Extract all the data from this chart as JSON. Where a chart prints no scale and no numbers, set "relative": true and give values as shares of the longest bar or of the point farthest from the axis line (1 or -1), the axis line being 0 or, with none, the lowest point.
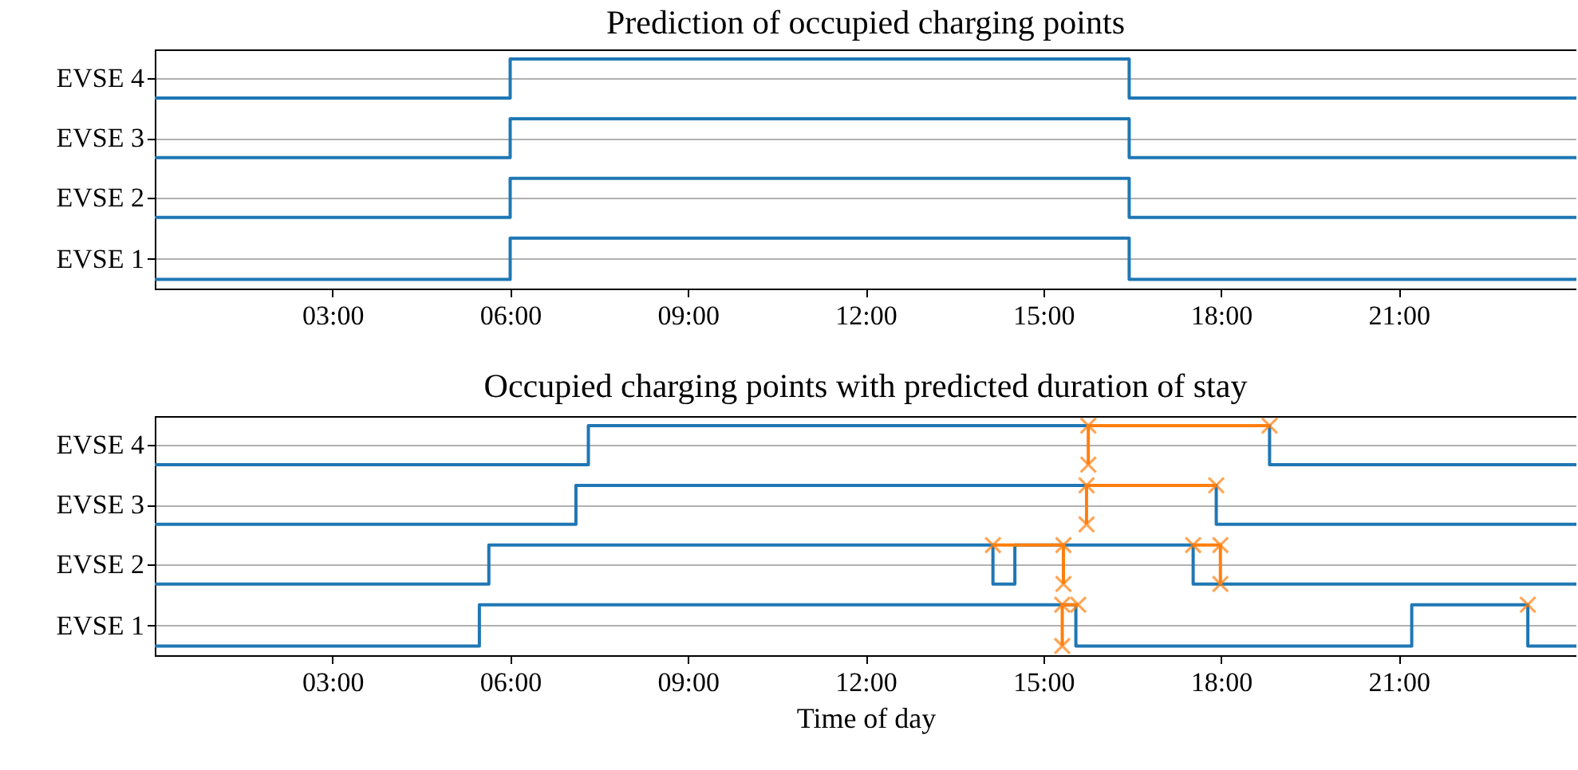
{
  "chart_data": [
    {
      "type": "step",
      "title": "Prediction of occupied charging points",
      "relative": true,
      "xlim": [
        0,
        24
      ],
      "xticks": [
        {
          "value": 3,
          "label": "03:00"
        },
        {
          "value": 6,
          "label": "06:00"
        },
        {
          "value": 9,
          "label": "09:00"
        },
        {
          "value": 12,
          "label": "12:00"
        },
        {
          "value": 15,
          "label": "15:00"
        },
        {
          "value": 18,
          "label": "18:00"
        },
        {
          "value": 21,
          "label": "21:00"
        }
      ],
      "y_categories": [
        "EVSE 4",
        "EVSE 3",
        "EVSE 2",
        "EVSE 1"
      ],
      "grid": "y",
      "series": [
        {
          "color": "#1f77b4",
          "x": [
            0,
            6,
            16.45,
            24
          ],
          "values": [
            0.04,
            0.22,
            0.04,
            0.04
          ]
        },
        {
          "color": "#1f77b4",
          "x": [
            0,
            6,
            16.45,
            24
          ],
          "values": [
            0.31,
            0.48,
            0.31,
            0.31
          ]
        },
        {
          "color": "#1f77b4",
          "x": [
            0,
            6,
            16.45,
            24
          ],
          "values": [
            0.57,
            0.74,
            0.57,
            0.57
          ]
        },
        {
          "color": "#1f77b4",
          "x": [
            0,
            6,
            16.45,
            24
          ],
          "values": [
            0.83,
            1,
            0.83,
            0.83
          ]
        }
      ]
    },
    {
      "type": "step",
      "title": "Occupied charging points with predicted duration of stay",
      "xlabel": "Time of day",
      "relative": true,
      "xlim": [
        0,
        24
      ],
      "xticks": [
        {
          "value": 3,
          "label": "03:00"
        },
        {
          "value": 6,
          "label": "06:00"
        },
        {
          "value": 9,
          "label": "09:00"
        },
        {
          "value": 12,
          "label": "12:00"
        },
        {
          "value": 15,
          "label": "15:00"
        },
        {
          "value": 18,
          "label": "18:00"
        },
        {
          "value": 21,
          "label": "21:00"
        }
      ],
      "y_categories": [
        "EVSE 4",
        "EVSE 3",
        "EVSE 2",
        "EVSE 1"
      ],
      "grid": "y",
      "series": [
        {
          "color": "#1f77b4",
          "x": [
            0,
            5.48,
            15.55,
            21.22,
            23.18,
            24
          ],
          "values": [
            0.04,
            0.22,
            0.04,
            0.22,
            0.04,
            0.04
          ]
        },
        {
          "color": "#1f77b4",
          "x": [
            0,
            5.64,
            14.15,
            14.52,
            17.53,
            24
          ],
          "values": [
            0.31,
            0.48,
            0.31,
            0.48,
            0.31,
            0.31
          ]
        },
        {
          "color": "#1f77b4",
          "x": [
            0,
            7.11,
            17.92,
            24
          ],
          "values": [
            0.57,
            0.74,
            0.57,
            0.57
          ]
        },
        {
          "color": "#1f77b4",
          "x": [
            0,
            7.32,
            18.82,
            24
          ],
          "values": [
            0.83,
            1,
            0.83,
            0.83
          ]
        },
        {
          "type": "line",
          "marker": "cross",
          "color": "#ff7f0e",
          "x": [
            15.32,
            15.32,
            15.59
          ],
          "values": [
            0.04,
            0.22,
            0.22
          ]
        },
        {
          "type": "scatter",
          "marker": "cross",
          "color": "#ff7f0e",
          "x": [
            23.18
          ],
          "values": [
            0.22
          ]
        },
        {
          "type": "line",
          "marker": "cross",
          "color": "#ff7f0e",
          "x": [
            14.15,
            15.34,
            15.34
          ],
          "values": [
            0.48,
            0.48,
            0.31
          ]
        },
        {
          "type": "line",
          "marker": "cross",
          "color": "#ff7f0e",
          "x": [
            17.53,
            17.99,
            17.99
          ],
          "values": [
            0.48,
            0.48,
            0.31
          ]
        },
        {
          "type": "line",
          "marker": "cross",
          "color": "#ff7f0e",
          "x": [
            15.73,
            15.73,
            17.92
          ],
          "values": [
            0.57,
            0.74,
            0.74
          ]
        },
        {
          "type": "line",
          "marker": "cross",
          "color": "#ff7f0e",
          "x": [
            15.76,
            15.76,
            18.82
          ],
          "values": [
            0.83,
            1,
            1
          ]
        }
      ]
    }
  ]
}
